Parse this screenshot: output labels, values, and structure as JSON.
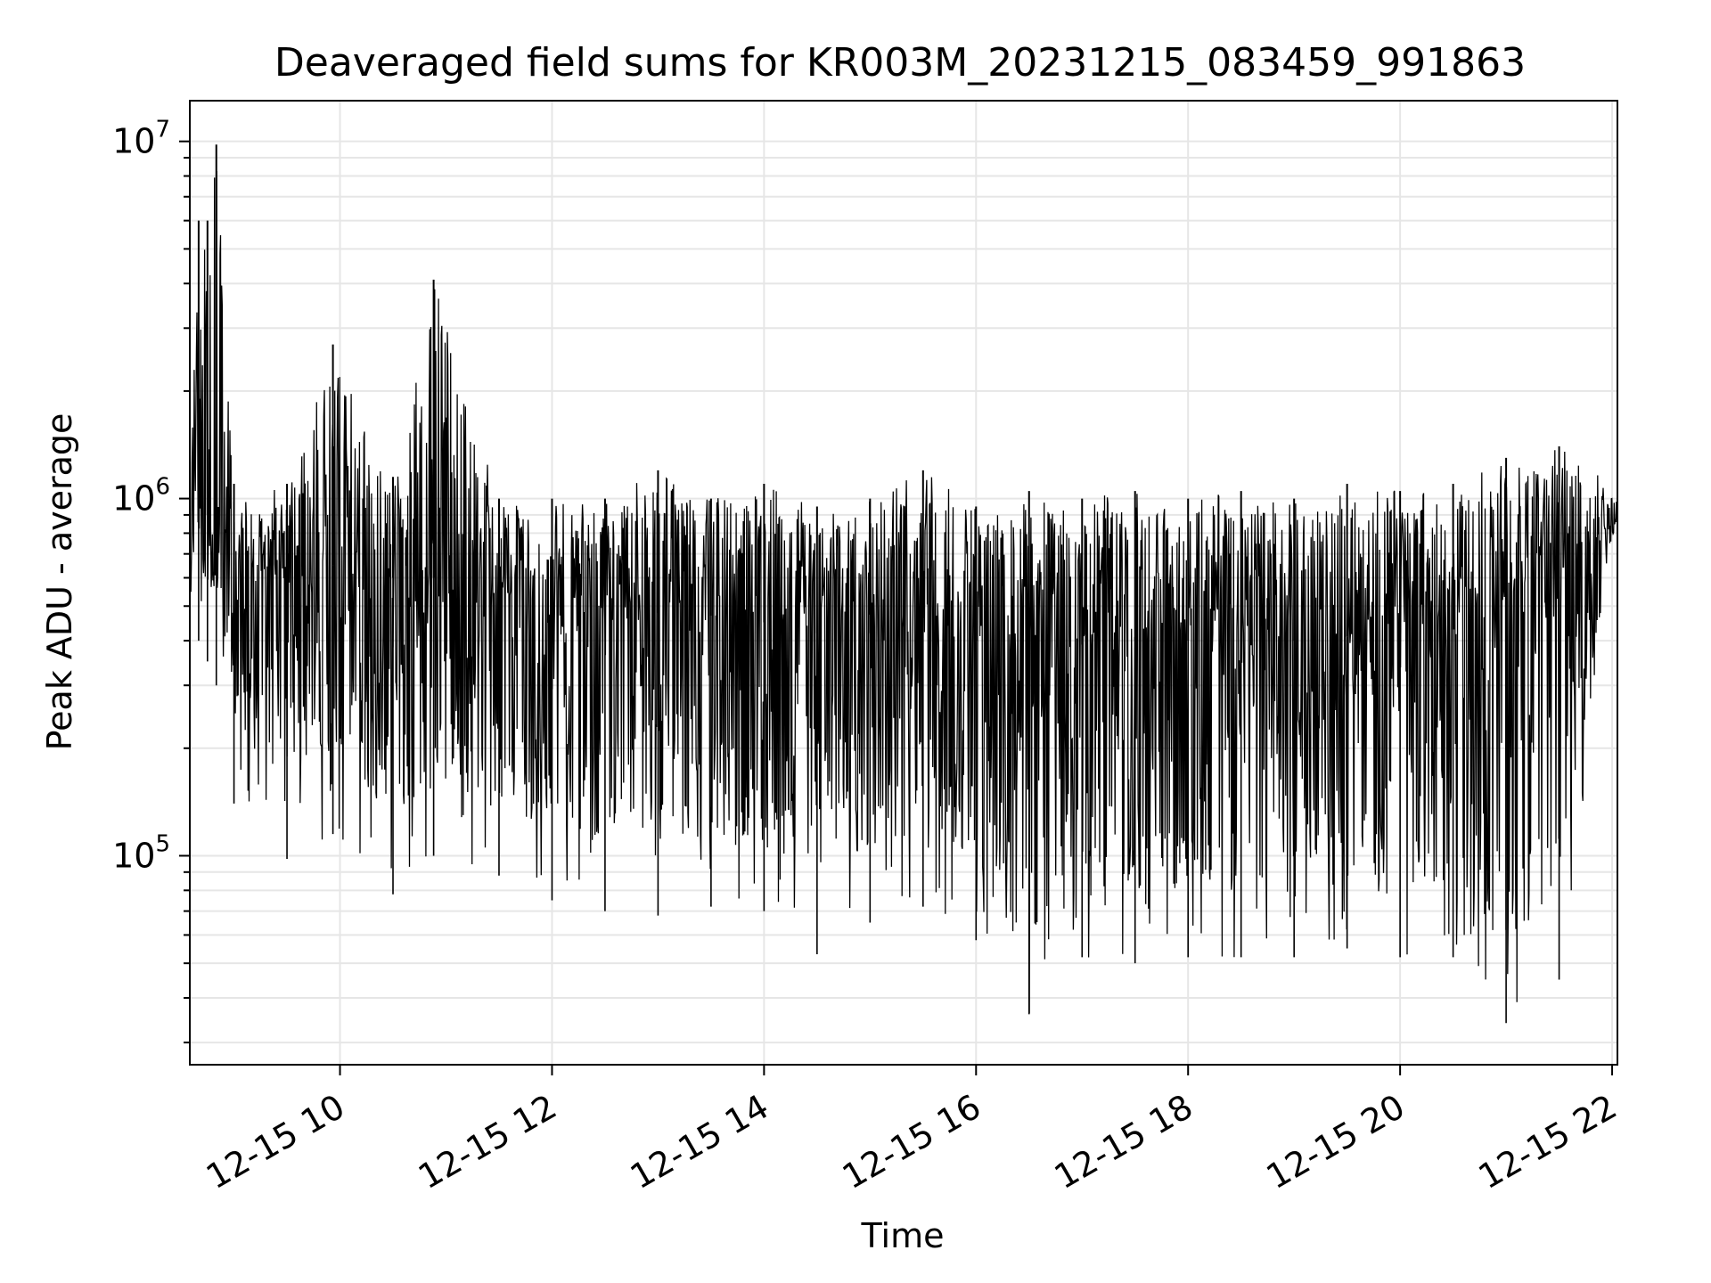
{
  "chart_data": {
    "type": "line",
    "title": "Deaveraged field sums for KR003M_20231215_083459_991863",
    "xlabel": "Time",
    "ylabel": "Peak ADU - average",
    "yscale": "log",
    "ylim": [
      26000,
      13000000
    ],
    "xlim": [
      "2023-12-15 08:35",
      "2023-12-15 22:03"
    ],
    "grid": true,
    "line_color": "#000000",
    "grid_color": "#e6e6e6",
    "x_ticks": [
      {
        "label": "12-15 10",
        "time": "2023-12-15 10:00"
      },
      {
        "label": "12-15 12",
        "time": "2023-12-15 12:00"
      },
      {
        "label": "12-15 14",
        "time": "2023-12-15 14:00"
      },
      {
        "label": "12-15 16",
        "time": "2023-12-15 16:00"
      },
      {
        "label": "12-15 18",
        "time": "2023-12-15 18:00"
      },
      {
        "label": "12-15 20",
        "time": "2023-12-15 20:00"
      },
      {
        "label": "12-15 22",
        "time": "2023-12-15 22:00"
      }
    ],
    "y_ticks": [
      {
        "base": "10",
        "exp": "5",
        "value": 100000
      },
      {
        "base": "10",
        "exp": "6",
        "value": 1000000
      },
      {
        "base": "10",
        "exp": "7",
        "value": 10000000
      }
    ],
    "series": [
      {
        "x": [
          "2023-12-15 08:35",
          "2023-12-15 08:40",
          "2023-12-15 08:45",
          "2023-12-15 08:50",
          "2023-12-15 09:00",
          "2023-12-15 09:30",
          "2023-12-15 09:56",
          "2023-12-15 10:30",
          "2023-12-15 10:53",
          "2023-12-15 11:30",
          "2023-12-15 12:00",
          "2023-12-15 12:30",
          "2023-12-15 13:00",
          "2023-12-15 13:30",
          "2023-12-15 14:00",
          "2023-12-15 14:30",
          "2023-12-15 15:00",
          "2023-12-15 15:30",
          "2023-12-15 16:00",
          "2023-12-15 16:30",
          "2023-12-15 17:00",
          "2023-12-15 17:30",
          "2023-12-15 18:00",
          "2023-12-15 18:30",
          "2023-12-15 19:00",
          "2023-12-15 19:30",
          "2023-12-15 20:00",
          "2023-12-15 20:30",
          "2023-12-15 21:00",
          "2023-12-15 21:30",
          "2023-12-15 22:03"
        ],
        "y_high": [
          1300000,
          6000000,
          6000000,
          9800000,
          1100000,
          1100000,
          2700000,
          1150000,
          4100000,
          1000000,
          1000000,
          1000000,
          1200000,
          1000000,
          1100000,
          950000,
          1000000,
          1200000,
          950000,
          1050000,
          1000000,
          1050000,
          1000000,
          1050000,
          1000000,
          1100000,
          1050000,
          1100000,
          1300000,
          1400000,
          1100000
        ],
        "y_mid": [
          800000,
          900000,
          900000,
          700000,
          650000,
          600000,
          650000,
          600000,
          600000,
          550000,
          500000,
          500000,
          480000,
          470000,
          450000,
          420000,
          420000,
          460000,
          400000,
          380000,
          390000,
          400000,
          400000,
          390000,
          400000,
          410000,
          420000,
          430000,
          450000,
          500000,
          800000
        ],
        "y_low": [
          280000,
          400000,
          350000,
          300000,
          140000,
          98000,
          115000,
          78000,
          100000,
          88000,
          75000,
          70000,
          68000,
          72000,
          70000,
          53000,
          65000,
          72000,
          58000,
          36000,
          52000,
          50000,
          52000,
          52000,
          52000,
          55000,
          52000,
          52000,
          34000,
          45000,
          640000
        ]
      }
    ]
  }
}
